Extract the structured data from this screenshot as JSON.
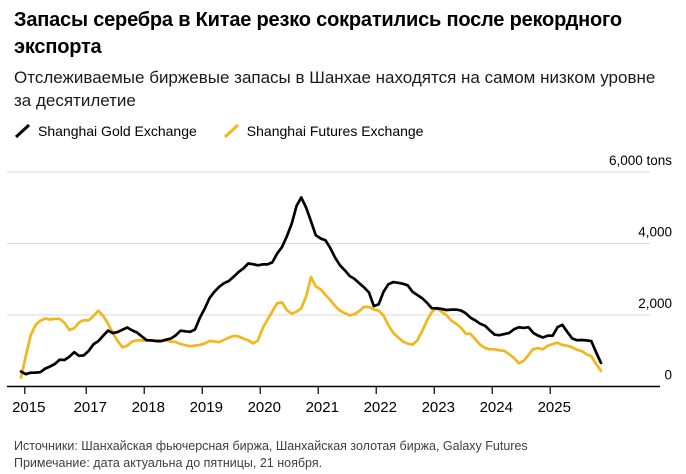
{
  "header": {
    "title": "Запасы серебра в Китае резко сократились после рекордного экспорта",
    "subtitle": "Отслеживаемые биржевые запасы в Шанхае находятся на самом низком уровне за десятилетие"
  },
  "legend": [
    {
      "label": "Shanghai Gold Exchange",
      "color": "#000000"
    },
    {
      "label": "Shanghai Futures Exchange",
      "color": "#F3B71E"
    }
  ],
  "footer": {
    "sources": "Источники: Шанхайская фьючерсная биржа, Шанхайская золотая биржа, Galaxy Futures",
    "note": "Примечание: дата актуальна до пятницы, 21 ноября."
  },
  "chart_data": {
    "type": "line",
    "title": "Tracked exchange silver inventories in Shanghai",
    "unit": "tons",
    "ylabel": "",
    "xlabel": "",
    "ylim": [
      0,
      6000
    ],
    "xlim": [
      2015.75,
      2026.9
    ],
    "grid": "horizontal",
    "legend_position": "top-left",
    "x_start_year": 2015.875,
    "x_step_years": 0.0833333,
    "x_ticks": [
      {
        "label": "2015",
        "year": 2015.94
      },
      {
        "label": "2017",
        "year": 2017
      },
      {
        "label": "2018",
        "year": 2018
      },
      {
        "label": "2019",
        "year": 2019
      },
      {
        "label": "2020",
        "year": 2020
      },
      {
        "label": "2021",
        "year": 2021
      },
      {
        "label": "2022",
        "year": 2022
      },
      {
        "label": "2023",
        "year": 2023
      },
      {
        "label": "2024",
        "year": 2024
      },
      {
        "label": "2025",
        "year": 2025
      }
    ],
    "y_ticks": [
      {
        "label": "0",
        "value": 0
      },
      {
        "label": "2,000",
        "value": 2000
      },
      {
        "label": "4,000",
        "value": 4000
      },
      {
        "label": "6,000 tons",
        "value": 6000
      }
    ],
    "series": [
      {
        "name": "Shanghai Gold Exchange",
        "color": "#000000",
        "values": [
          420,
          345,
          385,
          390,
          400,
          500,
          560,
          630,
          750,
          740,
          830,
          960,
          860,
          870,
          1000,
          1180,
          1270,
          1420,
          1565,
          1495,
          1525,
          1590,
          1650,
          1570,
          1510,
          1400,
          1295,
          1290,
          1270,
          1270,
          1310,
          1340,
          1430,
          1560,
          1545,
          1530,
          1595,
          1920,
          2180,
          2470,
          2650,
          2790,
          2890,
          2950,
          3070,
          3200,
          3300,
          3440,
          3420,
          3390,
          3415,
          3415,
          3470,
          3720,
          3900,
          4200,
          4550,
          5050,
          5290,
          5000,
          4620,
          4230,
          4140,
          4090,
          3870,
          3600,
          3390,
          3250,
          3090,
          3010,
          2890,
          2770,
          2630,
          2250,
          2300,
          2650,
          2860,
          2920,
          2900,
          2875,
          2830,
          2650,
          2560,
          2470,
          2340,
          2190,
          2185,
          2170,
          2140,
          2150,
          2150,
          2130,
          2050,
          1925,
          1850,
          1755,
          1700,
          1570,
          1450,
          1435,
          1465,
          1500,
          1600,
          1655,
          1640,
          1660,
          1500,
          1420,
          1370,
          1425,
          1420,
          1660,
          1725,
          1530,
          1350,
          1295,
          1300,
          1290,
          1270,
          950,
          660
        ]
      },
      {
        "name": "Shanghai Futures Exchange",
        "color": "#F3B71E",
        "values": [
          250,
          850,
          1430,
          1720,
          1840,
          1900,
          1875,
          1890,
          1890,
          1780,
          1580,
          1630,
          1790,
          1855,
          1850,
          1975,
          2120,
          1975,
          1760,
          1500,
          1270,
          1095,
          1140,
          1260,
          1290,
          1290,
          1285,
          1290,
          1288,
          1282,
          1290,
          1255,
          1245,
          1190,
          1155,
          1125,
          1145,
          1165,
          1200,
          1275,
          1260,
          1240,
          1305,
          1365,
          1415,
          1400,
          1340,
          1295,
          1205,
          1280,
          1630,
          1870,
          2100,
          2330,
          2350,
          2140,
          2035,
          2090,
          2190,
          2520,
          3060,
          2800,
          2720,
          2560,
          2420,
          2250,
          2120,
          2050,
          1990,
          2020,
          2110,
          2230,
          2220,
          2150,
          2120,
          1990,
          1720,
          1500,
          1380,
          1260,
          1200,
          1170,
          1290,
          1550,
          1850,
          2080,
          2200,
          2090,
          2000,
          1845,
          1760,
          1650,
          1480,
          1470,
          1320,
          1170,
          1080,
          1040,
          1040,
          1010,
          1000,
          900,
          800,
          650,
          720,
          880,
          1050,
          1070,
          1040,
          1140,
          1185,
          1225,
          1160,
          1140,
          1100,
          1030,
          990,
          900,
          850,
          620,
          440
        ]
      }
    ]
  }
}
